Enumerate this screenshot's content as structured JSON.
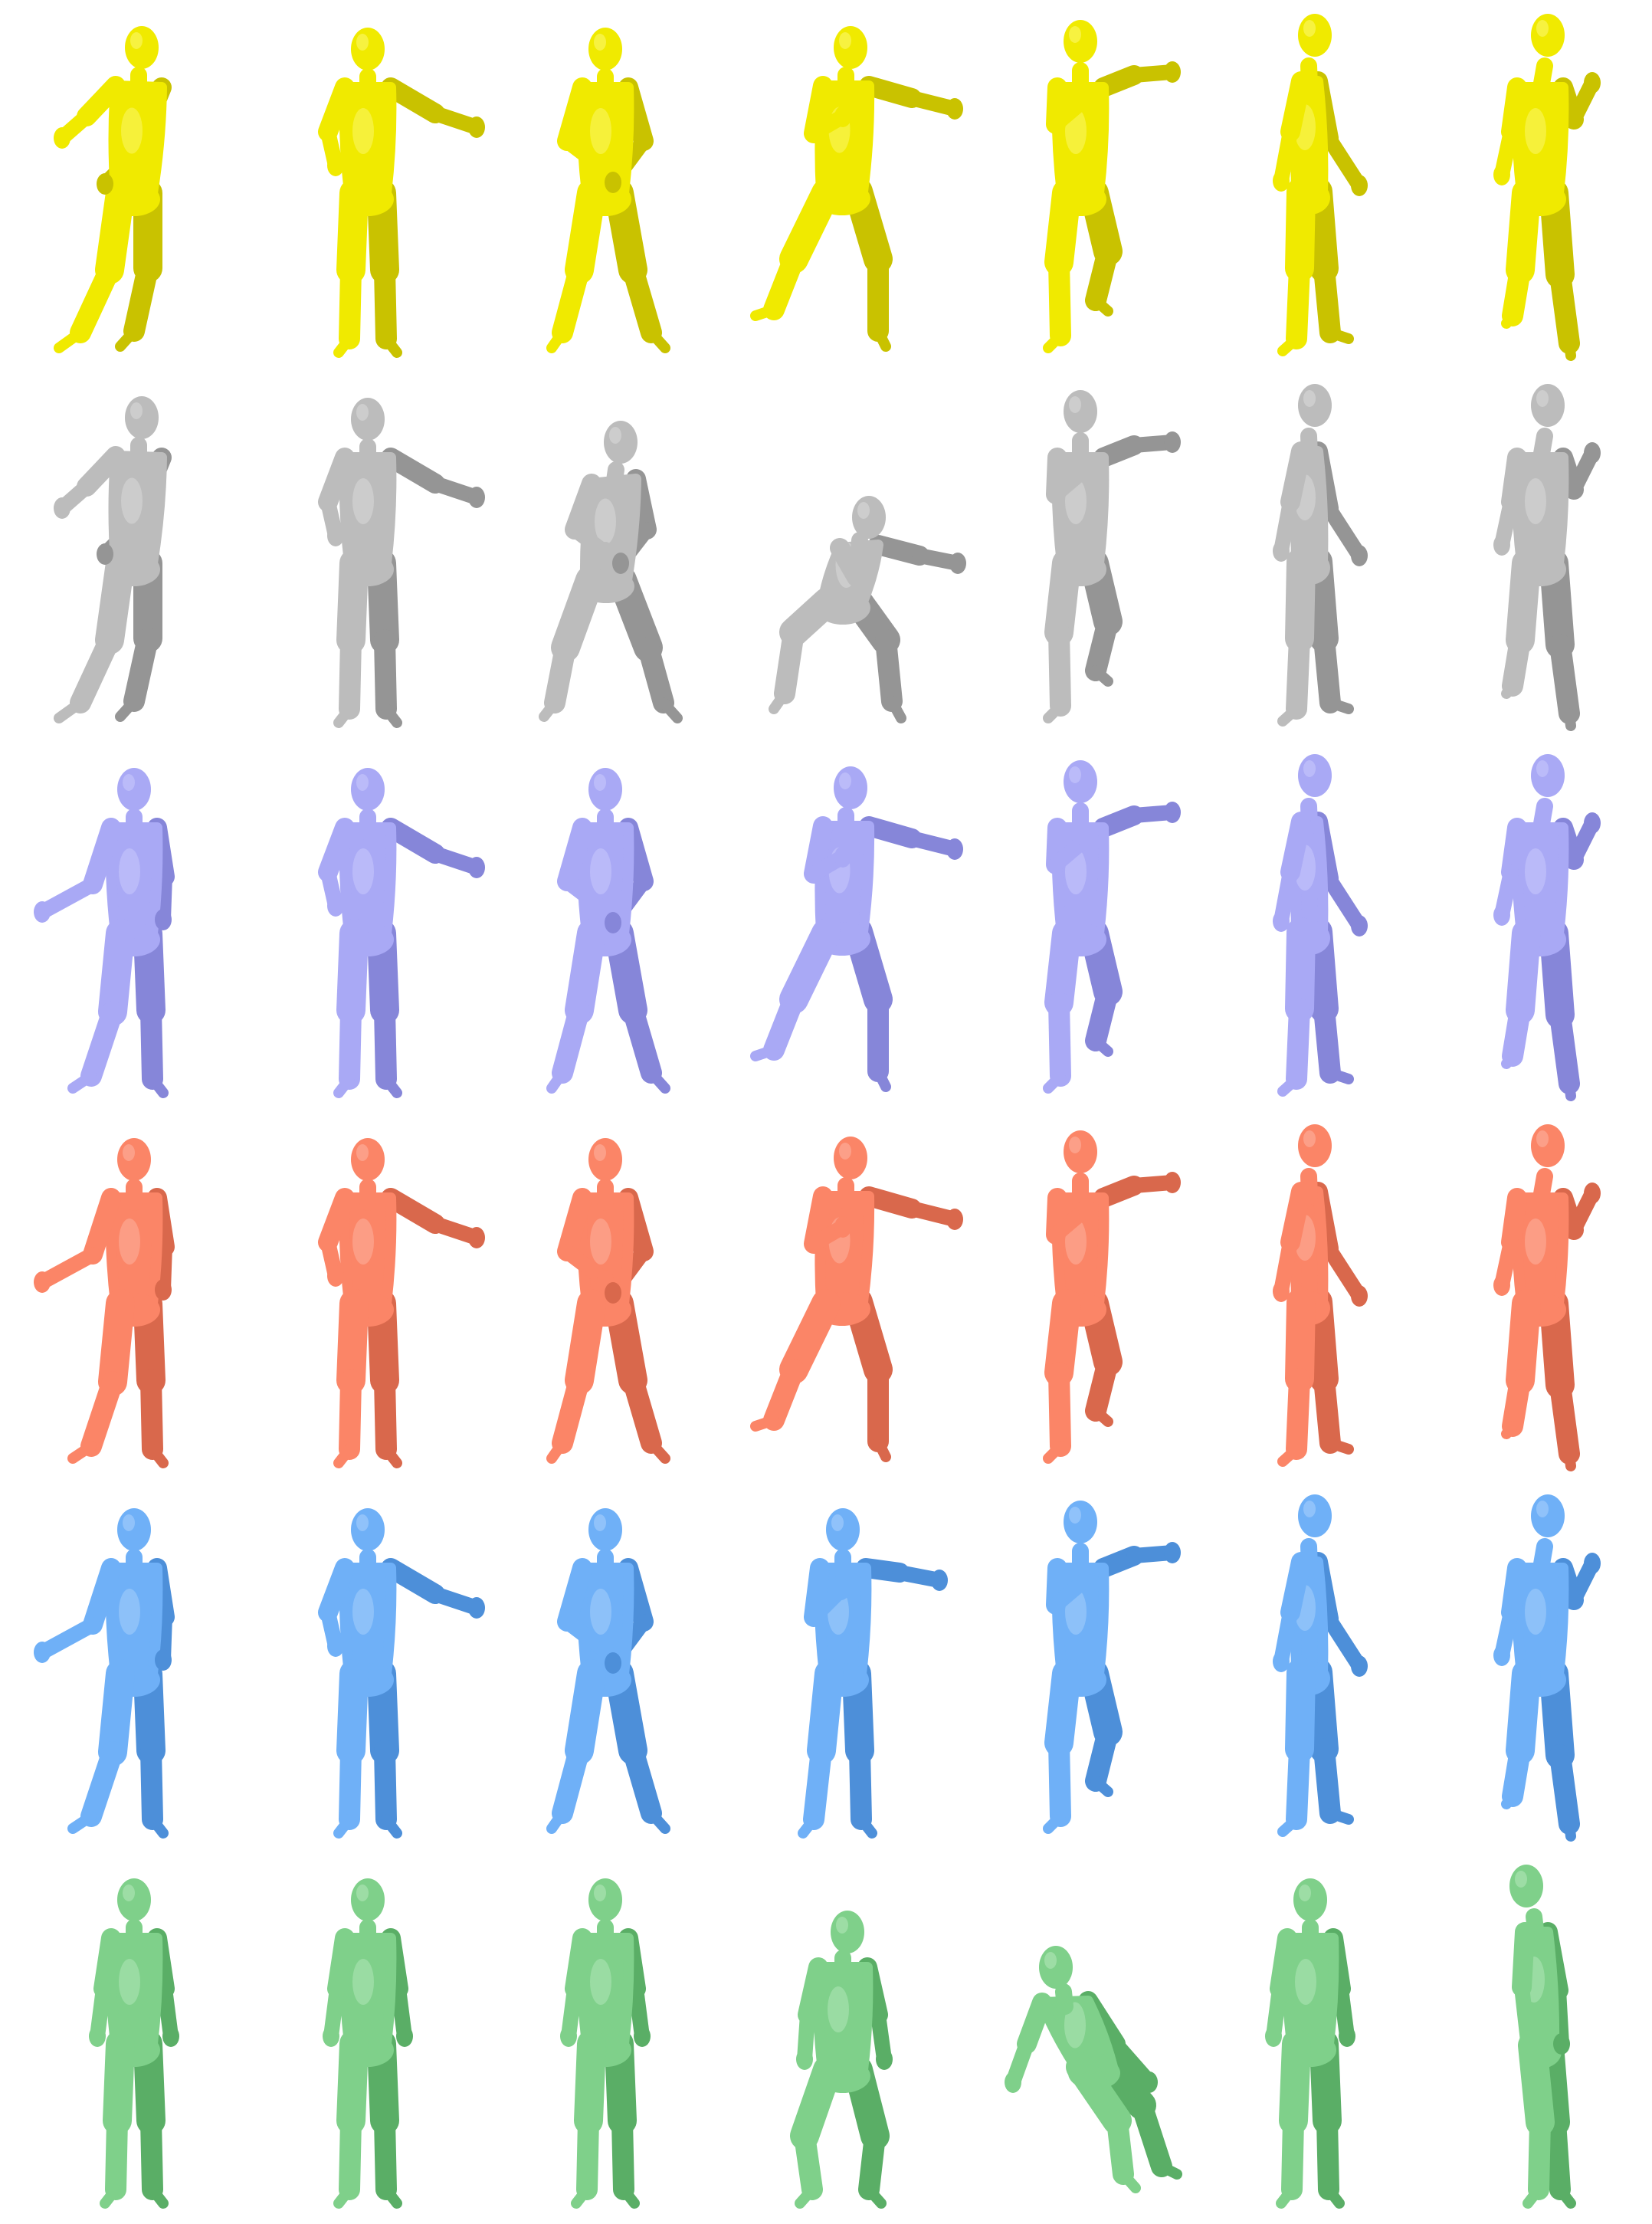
{
  "figure": {
    "rows": [
      {
        "id": "row-1",
        "mesh_color": "#f0ea00",
        "shade_color": "#c9c200",
        "highlight_color": "#fbf66a",
        "poses": [
          "lean-walk",
          "arm-out-right",
          "hands-on-belly",
          "lunge-point-right",
          "step-point-right",
          "side-walk",
          "back-walk"
        ]
      },
      {
        "id": "row-2",
        "mesh_color": "#bcbcbc",
        "shade_color": "#959595",
        "highlight_color": "#d9d9d9",
        "poses": [
          "lean-walk",
          "arm-out-right",
          "crouch-hands-belly",
          "deep-crouch-point-right",
          "step-point-right",
          "side-walk",
          "back-walk"
        ]
      },
      {
        "id": "row-3",
        "mesh_color": "#a9a9f5",
        "shade_color": "#8686d9",
        "highlight_color": "#c8c8fb",
        "poses": [
          "reach-left",
          "arm-out-right",
          "hands-on-belly",
          "lunge-point-right",
          "step-point-right",
          "side-walk",
          "back-walk"
        ]
      },
      {
        "id": "row-4",
        "mesh_color": "#fb8567",
        "shade_color": "#d9684c",
        "highlight_color": "#fdb19e",
        "poses": [
          "reach-left",
          "arm-out-right",
          "hands-on-belly",
          "lunge-point-right",
          "step-point-right",
          "side-walk",
          "back-walk"
        ]
      },
      {
        "id": "row-5",
        "mesh_color": "#6fb0f7",
        "shade_color": "#4d8fd9",
        "highlight_color": "#a6cffb",
        "poses": [
          "reach-left",
          "arm-out-right",
          "hands-on-belly",
          "stand-point-right",
          "step-point-right",
          "side-walk",
          "back-walk"
        ]
      },
      {
        "id": "row-6",
        "mesh_color": "#7fd08a",
        "shade_color": "#5aae66",
        "highlight_color": "#b1e6b8",
        "poses": [
          "stand-arms-down",
          "stand-arms-down",
          "stand-arms-down",
          "lean-arms-down",
          "deep-crouch-arms-down",
          "stand-arms-down",
          "side-arms-down"
        ]
      }
    ]
  }
}
